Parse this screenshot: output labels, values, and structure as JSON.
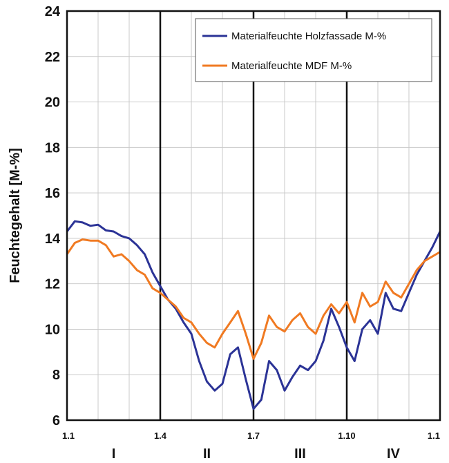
{
  "chart_data": {
    "type": "line",
    "title": "",
    "xlabel": "",
    "ylabel": "Feuchtegehalt [M-%]",
    "ylim": [
      6,
      24
    ],
    "yticks": [
      6,
      8,
      10,
      12,
      14,
      16,
      18,
      20,
      22,
      24
    ],
    "xlim": [
      0,
      12
    ],
    "xticks": [
      {
        "x": 0,
        "label": "1.1"
      },
      {
        "x": 3,
        "label": "1.4"
      },
      {
        "x": 6,
        "label": "1.7"
      },
      {
        "x": 9,
        "label": "1.10"
      },
      {
        "x": 12,
        "label": "1.1"
      }
    ],
    "periods": [
      {
        "label": "I",
        "x": 1.5
      },
      {
        "label": "II",
        "x": 4.5
      },
      {
        "label": "III",
        "x": 7.5
      },
      {
        "label": "IV",
        "x": 10.5
      }
    ],
    "grid": true,
    "legend_position": "top-right",
    "series": [
      {
        "name": "Materialfeuchte Holzfassade M-%",
        "color": "#2b3396",
        "x": [
          0,
          0.25,
          0.5,
          0.75,
          1.0,
          1.25,
          1.5,
          1.75,
          2.0,
          2.25,
          2.5,
          2.75,
          3.0,
          3.25,
          3.5,
          3.75,
          4.0,
          4.25,
          4.5,
          4.75,
          5.0,
          5.25,
          5.5,
          5.75,
          6.0,
          6.25,
          6.5,
          6.75,
          7.0,
          7.25,
          7.5,
          7.75,
          8.0,
          8.25,
          8.5,
          8.75,
          9.0,
          9.25,
          9.5,
          9.75,
          10.0,
          10.25,
          10.5,
          10.75,
          11.0,
          11.25,
          11.5,
          11.75,
          12.0
        ],
        "values": [
          14.3,
          14.75,
          14.7,
          14.55,
          14.6,
          14.35,
          14.3,
          14.1,
          14.0,
          13.7,
          13.3,
          12.5,
          11.9,
          11.3,
          10.9,
          10.3,
          9.8,
          8.6,
          7.7,
          7.3,
          7.6,
          8.9,
          9.2,
          7.8,
          6.5,
          6.9,
          8.6,
          8.2,
          7.3,
          7.9,
          8.4,
          8.2,
          8.6,
          9.5,
          10.9,
          10.1,
          9.2,
          8.6,
          10.0,
          10.4,
          9.8,
          11.6,
          10.9,
          10.8,
          11.6,
          12.4,
          13.0,
          13.6,
          14.3
        ]
      },
      {
        "name": "Materialfeuchte MDF M-%",
        "color": "#f07a22",
        "x": [
          0,
          0.25,
          0.5,
          0.75,
          1.0,
          1.25,
          1.5,
          1.75,
          2.0,
          2.25,
          2.5,
          2.75,
          3.0,
          3.25,
          3.5,
          3.75,
          4.0,
          4.25,
          4.5,
          4.75,
          5.0,
          5.25,
          5.5,
          5.75,
          6.0,
          6.25,
          6.5,
          6.75,
          7.0,
          7.25,
          7.5,
          7.75,
          8.0,
          8.25,
          8.5,
          8.75,
          9.0,
          9.25,
          9.5,
          9.75,
          10.0,
          10.25,
          10.5,
          10.75,
          11.0,
          11.25,
          11.5,
          11.75,
          12.0
        ],
        "values": [
          13.3,
          13.8,
          13.95,
          13.9,
          13.9,
          13.7,
          13.2,
          13.3,
          13.0,
          12.6,
          12.4,
          11.8,
          11.6,
          11.3,
          11.0,
          10.5,
          10.3,
          9.8,
          9.4,
          9.2,
          9.8,
          10.3,
          10.8,
          9.8,
          8.7,
          9.4,
          10.6,
          10.1,
          9.9,
          10.4,
          10.7,
          10.1,
          9.8,
          10.6,
          11.1,
          10.7,
          11.2,
          10.3,
          11.6,
          11.0,
          11.2,
          12.1,
          11.6,
          11.4,
          12.0,
          12.6,
          13.0,
          13.2,
          13.4
        ]
      }
    ]
  }
}
